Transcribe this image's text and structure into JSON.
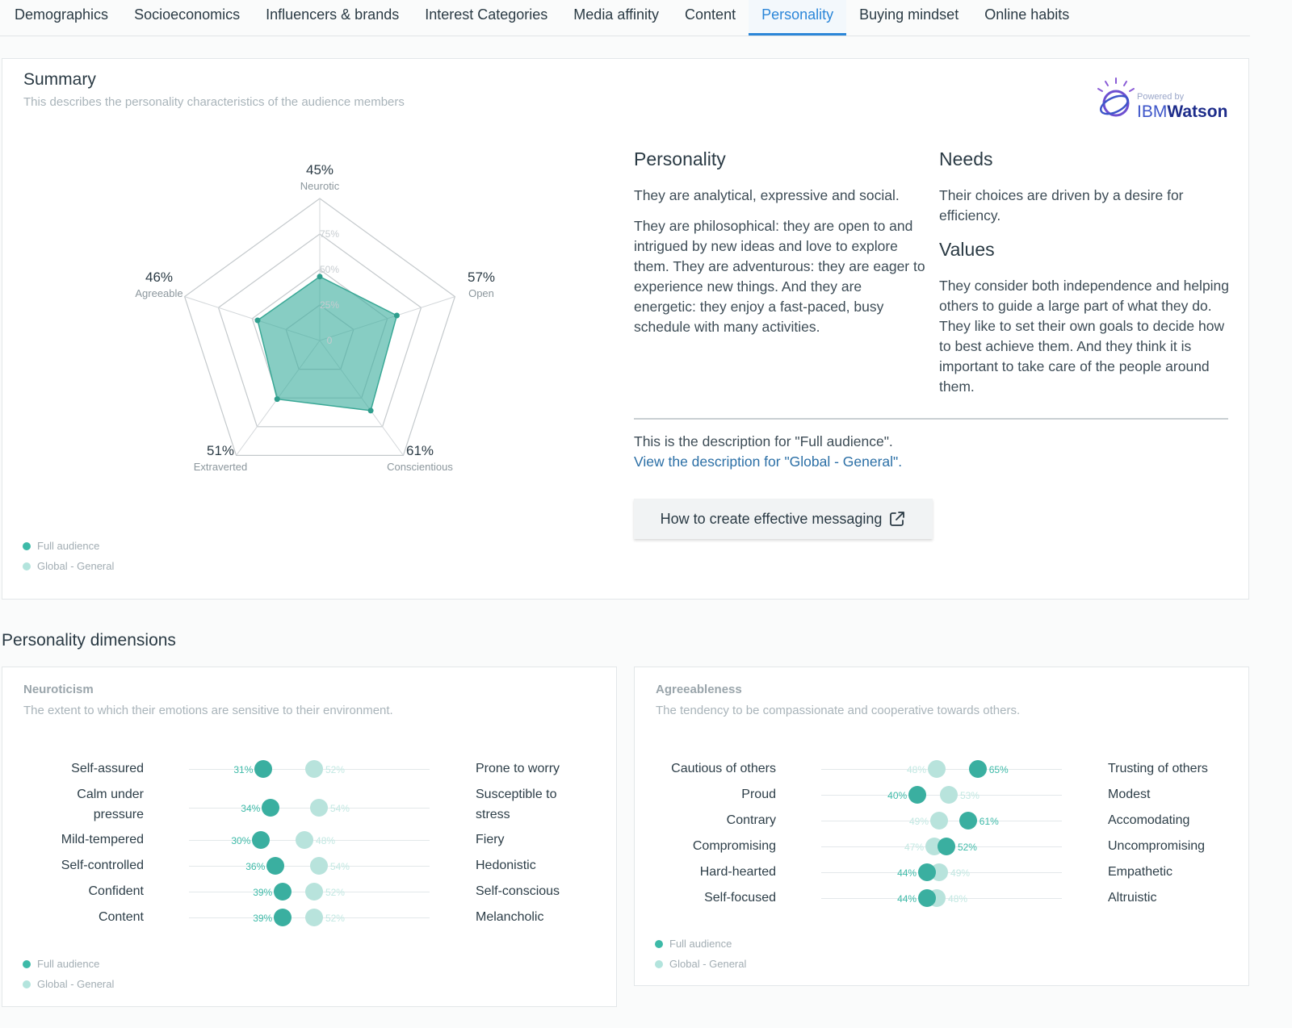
{
  "tabs": [
    {
      "label": "Demographics",
      "active": false
    },
    {
      "label": "Socioeconomics",
      "active": false
    },
    {
      "label": "Influencers & brands",
      "active": false
    },
    {
      "label": "Interest Categories",
      "active": false
    },
    {
      "label": "Media affinity",
      "active": false
    },
    {
      "label": "Content",
      "active": false
    },
    {
      "label": "Personality",
      "active": true
    },
    {
      "label": "Buying mindset",
      "active": false
    },
    {
      "label": "Online habits",
      "active": false
    }
  ],
  "summary": {
    "title": "Summary",
    "subtitle": "This describes the personality characteristics of the audience members",
    "powered_by": "Powered by",
    "brand_ibm": "IBM",
    "brand_watson": "Watson"
  },
  "chart_data": {
    "type": "radar",
    "axes": [
      {
        "label": "Neurotic",
        "value": 45,
        "value_label": "45%"
      },
      {
        "label": "Open",
        "value": 57,
        "value_label": "57%"
      },
      {
        "label": "Conscientious",
        "value": 61,
        "value_label": "61%"
      },
      {
        "label": "Extraverted",
        "value": 51,
        "value_label": "51%"
      },
      {
        "label": "Agreeable",
        "value": 46,
        "value_label": "46%"
      }
    ],
    "rings": [
      "0",
      "25%",
      "50%",
      "75%"
    ],
    "range": [
      0,
      100
    ]
  },
  "legend": {
    "full": "Full audience",
    "global": "Global - General"
  },
  "personality": {
    "heading": "Personality",
    "p1": "They are analytical, expressive and social.",
    "p2": "They are philosophical: they are open to and intrigued by new ideas and love to explore them. They are adventurous: they are eager to experience new things. And they are energetic: they enjoy a fast-paced, busy schedule with many activities."
  },
  "needs": {
    "heading": "Needs",
    "text": "Their choices are driven by a desire for efficiency."
  },
  "values": {
    "heading": "Values",
    "text": "They consider both independence and helping others to guide a large part of what they do. They like to set their own goals to decide how to best achieve them. And they think it is important to take care of the people around them."
  },
  "description": {
    "current": "This is the description for \"Full audience\".",
    "link": "View the description for \"Global - General\"."
  },
  "messaging_button": "How to create effective messaging",
  "dimensions_title": "Personality dimensions",
  "neuroticism": {
    "title": "Neuroticism",
    "subtitle": "The extent to which their emotions are sensitive to their environment.",
    "rows": [
      {
        "left": "Self-assured",
        "right": "Prone to worry",
        "full": 31,
        "global": 52,
        "full_label": "31%",
        "global_label": "52%"
      },
      {
        "left": "Calm under pressure",
        "right": "Susceptible to stress",
        "full": 34,
        "global": 54,
        "full_label": "34%",
        "global_label": "54%"
      },
      {
        "left": "Mild-tempered",
        "right": "Fiery",
        "full": 30,
        "global": 48,
        "full_label": "30%",
        "global_label": "48%"
      },
      {
        "left": "Self-controlled",
        "right": "Hedonistic",
        "full": 36,
        "global": 54,
        "full_label": "36%",
        "global_label": "54%"
      },
      {
        "left": "Confident",
        "right": "Self-conscious",
        "full": 39,
        "global": 52,
        "full_label": "39%",
        "global_label": "52%"
      },
      {
        "left": "Content",
        "right": "Melancholic",
        "full": 39,
        "global": 52,
        "full_label": "39%",
        "global_label": "52%"
      }
    ]
  },
  "agreeableness": {
    "title": "Agreeableness",
    "subtitle": "The tendency to be compassionate and cooperative towards others.",
    "rows": [
      {
        "left": "Cautious of others",
        "right": "Trusting of others",
        "full": 65,
        "global": 48,
        "full_label": "65%",
        "global_label": "48%"
      },
      {
        "left": "Proud",
        "right": "Modest",
        "full": 40,
        "global": 53,
        "full_label": "40%",
        "global_label": "53%"
      },
      {
        "left": "Contrary",
        "right": "Accomodating",
        "full": 61,
        "global": 49,
        "full_label": "61%",
        "global_label": "49%"
      },
      {
        "left": "Compromising",
        "right": "Uncompromising",
        "full": 52,
        "global": 47,
        "full_label": "52%",
        "global_label": "47%"
      },
      {
        "left": "Hard-hearted",
        "right": "Empathetic",
        "full": 44,
        "global": 49,
        "full_label": "44%",
        "global_label": "49%"
      },
      {
        "left": "Self-focused",
        "right": "Altruistic",
        "full": 44,
        "global": 48,
        "full_label": "44%",
        "global_label": "48%"
      }
    ]
  },
  "colors": {
    "accent": "#2b86d8",
    "full": "#3aafa0",
    "global": "#b8e3dc"
  }
}
